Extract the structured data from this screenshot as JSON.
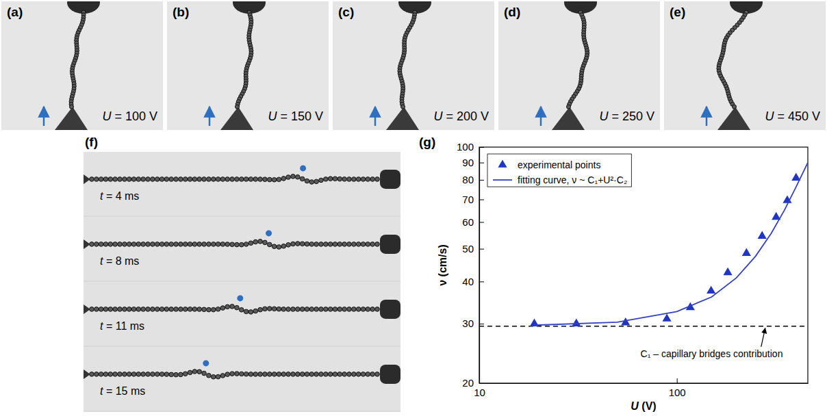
{
  "panels": [
    {
      "label": "(a)",
      "caption": "U = 100 V"
    },
    {
      "label": "(b)",
      "caption": "U = 150 V"
    },
    {
      "label": "(c)",
      "caption": "U = 200 V"
    },
    {
      "label": "(d)",
      "caption": "U = 250 V"
    },
    {
      "label": "(e)",
      "caption": "U = 450 V"
    },
    {
      "label": "(f)",
      "frames": [
        "t = 4 ms",
        "t = 8 ms",
        "t = 11 ms",
        "t = 15 ms"
      ]
    }
  ],
  "chart_data": {
    "label": "(g)",
    "type": "scatter",
    "x_label": "U (V)",
    "y_label": "ν (cm/s)",
    "log": true,
    "xlim": [
      10,
      460
    ],
    "ylim": [
      20,
      100
    ],
    "xticks": [
      10,
      100
    ],
    "yticks": [
      20,
      30,
      40,
      50,
      60,
      70,
      80,
      90,
      100
    ],
    "legend": "upper left",
    "series": [
      {
        "name": "experimental points",
        "type": "scatter",
        "marker": "triangle",
        "color": "#1f35c4",
        "x": [
          19,
          31,
          55,
          89,
          117,
          149,
          181,
          225,
          270,
          318,
          362,
          401
        ],
        "values": [
          30,
          30,
          30.2,
          31,
          33.5,
          37.5,
          42.5,
          48.5,
          54.5,
          62,
          69.5,
          81
        ]
      },
      {
        "name": "fitting curve, ν ~ C₁+U²·C₂",
        "type": "line",
        "line_style": "solid",
        "color": "#3340c8",
        "x": [
          19,
          50,
          100,
          150,
          200,
          250,
          300,
          350,
          400,
          460
        ],
        "values": [
          29.7,
          30.3,
          32.6,
          36,
          41,
          47.5,
          55.5,
          65,
          76,
          90
        ]
      }
    ],
    "reference_line": {
      "value": 29.5,
      "line_style": "dashed",
      "color": "#000000"
    },
    "annotations": [
      {
        "text": "C₁ – capillary bridges contribution",
        "x": 150,
        "y": 23.9,
        "arrow_x": 280,
        "arrow_y": 29.5
      }
    ]
  }
}
